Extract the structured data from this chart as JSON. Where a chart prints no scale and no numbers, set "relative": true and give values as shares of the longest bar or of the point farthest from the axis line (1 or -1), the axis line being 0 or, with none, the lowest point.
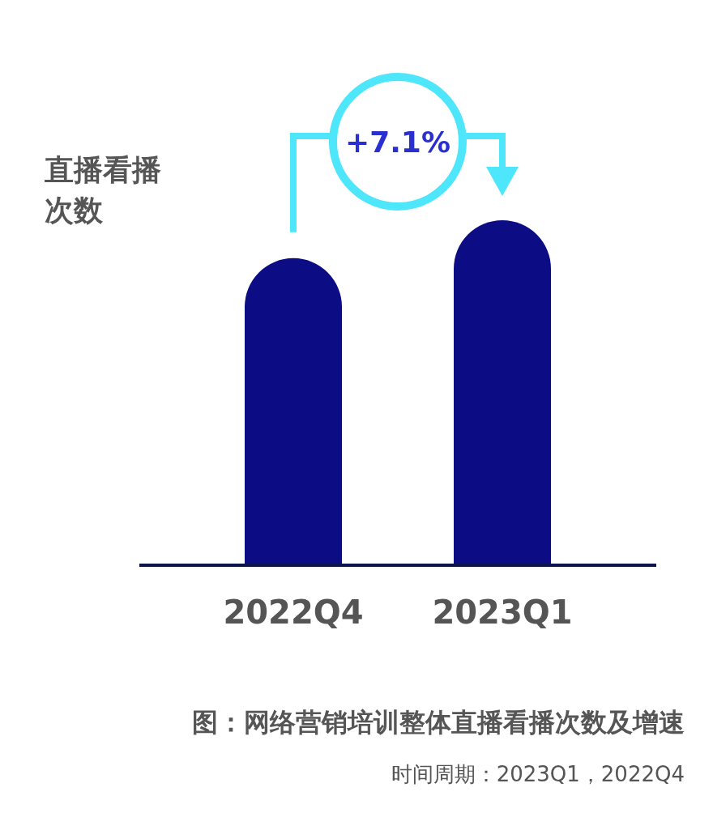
{
  "chart_data": {
    "type": "bar",
    "relative": true,
    "title": "图：网络营销培训整体直播看播次数及增速",
    "ylabel": "直播看播次数",
    "categories": [
      "2022Q4",
      "2023Q1"
    ],
    "values": [
      0.89,
      1
    ],
    "color": "#0c0c85",
    "annotations": [
      "+7.1%",
      "时间周期：2023Q1，2022Q4"
    ]
  }
}
